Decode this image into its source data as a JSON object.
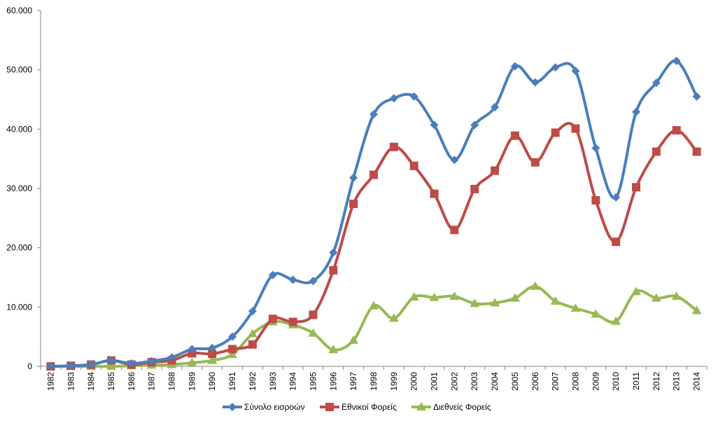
{
  "chart_data": {
    "type": "line",
    "title": "",
    "xlabel": "",
    "ylabel": "",
    "ylim": [
      0,
      60000
    ],
    "y_ticks": [
      0,
      10000,
      20000,
      30000,
      40000,
      50000,
      60000
    ],
    "y_tick_labels": [
      "0",
      "10.000",
      "20.000",
      "30.000",
      "40.000",
      "50.000",
      "60.000"
    ],
    "grid": false,
    "smoothed": true,
    "legend_position": "bottom",
    "categories": [
      "1982",
      "1983",
      "1984",
      "1985",
      "1986",
      "1987",
      "1988",
      "1989",
      "1990",
      "1991",
      "1992",
      "1993",
      "1994",
      "1995",
      "1996",
      "1997",
      "1998",
      "1999",
      "2000",
      "2001",
      "2002",
      "2003",
      "2004",
      "2005",
      "2006",
      "2007",
      "2008",
      "2009",
      "2010",
      "2011",
      "2012",
      "2013",
      "2014"
    ],
    "series": [
      {
        "name": "Σύνολο εισροών",
        "color": "#4a7ebb",
        "marker": "diamond",
        "values": [
          0,
          100,
          300,
          1000,
          500,
          900,
          1500,
          2900,
          3100,
          5000,
          9300,
          15400,
          14600,
          14400,
          19200,
          31800,
          42500,
          45200,
          45500,
          40700,
          34800,
          40700,
          43700,
          50600,
          47900,
          50400,
          49800,
          36800,
          28500,
          42900,
          47800,
          51500,
          45500
        ]
      },
      {
        "name": "Εθνικοί Φορείς",
        "color": "#be4b48",
        "marker": "square",
        "values": [
          0,
          100,
          300,
          1000,
          300,
          700,
          1000,
          2200,
          2100,
          2900,
          3700,
          8000,
          7500,
          8700,
          16200,
          27400,
          32300,
          37000,
          33800,
          29100,
          23000,
          29900,
          33000,
          38900,
          34400,
          39400,
          40100,
          28000,
          21000,
          30200,
          36200,
          39800,
          36200
        ]
      },
      {
        "name": "Διεθνείς Φορείς",
        "color": "#98b954",
        "marker": "triangle",
        "values": [
          0,
          0,
          0,
          0,
          100,
          200,
          300,
          600,
          1000,
          2000,
          5500,
          7500,
          7000,
          5600,
          2800,
          4400,
          10200,
          8100,
          11700,
          11600,
          11800,
          10600,
          10700,
          11500,
          13500,
          11000,
          9800,
          8800,
          7600,
          12600,
          11500,
          11800,
          9400
        ]
      }
    ]
  }
}
